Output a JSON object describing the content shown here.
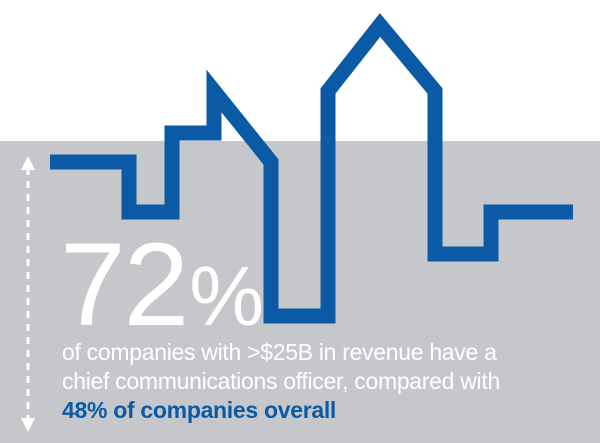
{
  "stat": {
    "number": "72",
    "percent_sign": "%"
  },
  "caption": {
    "line1": "of companies with  >$25B in revenue have a",
    "line2": "chief communications officer, compared with",
    "line3": "48% of companies overall"
  },
  "colors": {
    "skyline_stroke": "#0a5aa5",
    "panel_background": "#c6c7cb",
    "text": "#ffffff",
    "highlight": "#0a5aa5"
  },
  "icons": {
    "skyline": "city-skyline-outline",
    "arrow": "vertical-double-arrow-dashed"
  }
}
